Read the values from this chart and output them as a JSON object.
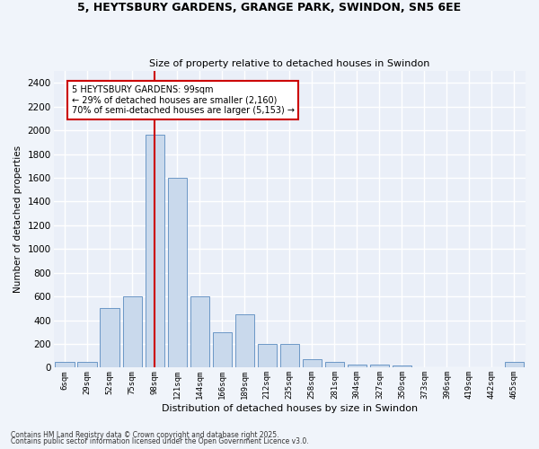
{
  "title1": "5, HEYTSBURY GARDENS, GRANGE PARK, SWINDON, SN5 6EE",
  "title2": "Size of property relative to detached houses in Swindon",
  "xlabel": "Distribution of detached houses by size in Swindon",
  "ylabel": "Number of detached properties",
  "categories": [
    "6sqm",
    "29sqm",
    "52sqm",
    "75sqm",
    "98sqm",
    "121sqm",
    "144sqm",
    "166sqm",
    "189sqm",
    "212sqm",
    "235sqm",
    "258sqm",
    "281sqm",
    "304sqm",
    "327sqm",
    "350sqm",
    "373sqm",
    "396sqm",
    "419sqm",
    "442sqm",
    "465sqm"
  ],
  "values": [
    50,
    50,
    500,
    600,
    1960,
    1600,
    600,
    300,
    450,
    200,
    200,
    75,
    50,
    25,
    25,
    15,
    5,
    0,
    5,
    0,
    50
  ],
  "bar_color": "#c9d9ec",
  "bar_edge_color": "#5a8bbf",
  "vline_x_idx": 4,
  "vline_color": "#cc0000",
  "annotation_text": "5 HEYTSBURY GARDENS: 99sqm\n← 29% of detached houses are smaller (2,160)\n70% of semi-detached houses are larger (5,153) →",
  "annotation_box_color": "#ffffff",
  "annotation_box_edge": "#cc0000",
  "ylim": [
    0,
    2500
  ],
  "yticks": [
    0,
    200,
    400,
    600,
    800,
    1000,
    1200,
    1400,
    1600,
    1800,
    2000,
    2200,
    2400
  ],
  "bg_color": "#eaeff8",
  "grid_color": "#ffffff",
  "fig_bg_color": "#f0f4fa",
  "footer1": "Contains HM Land Registry data © Crown copyright and database right 2025.",
  "footer2": "Contains public sector information licensed under the Open Government Licence v3.0."
}
